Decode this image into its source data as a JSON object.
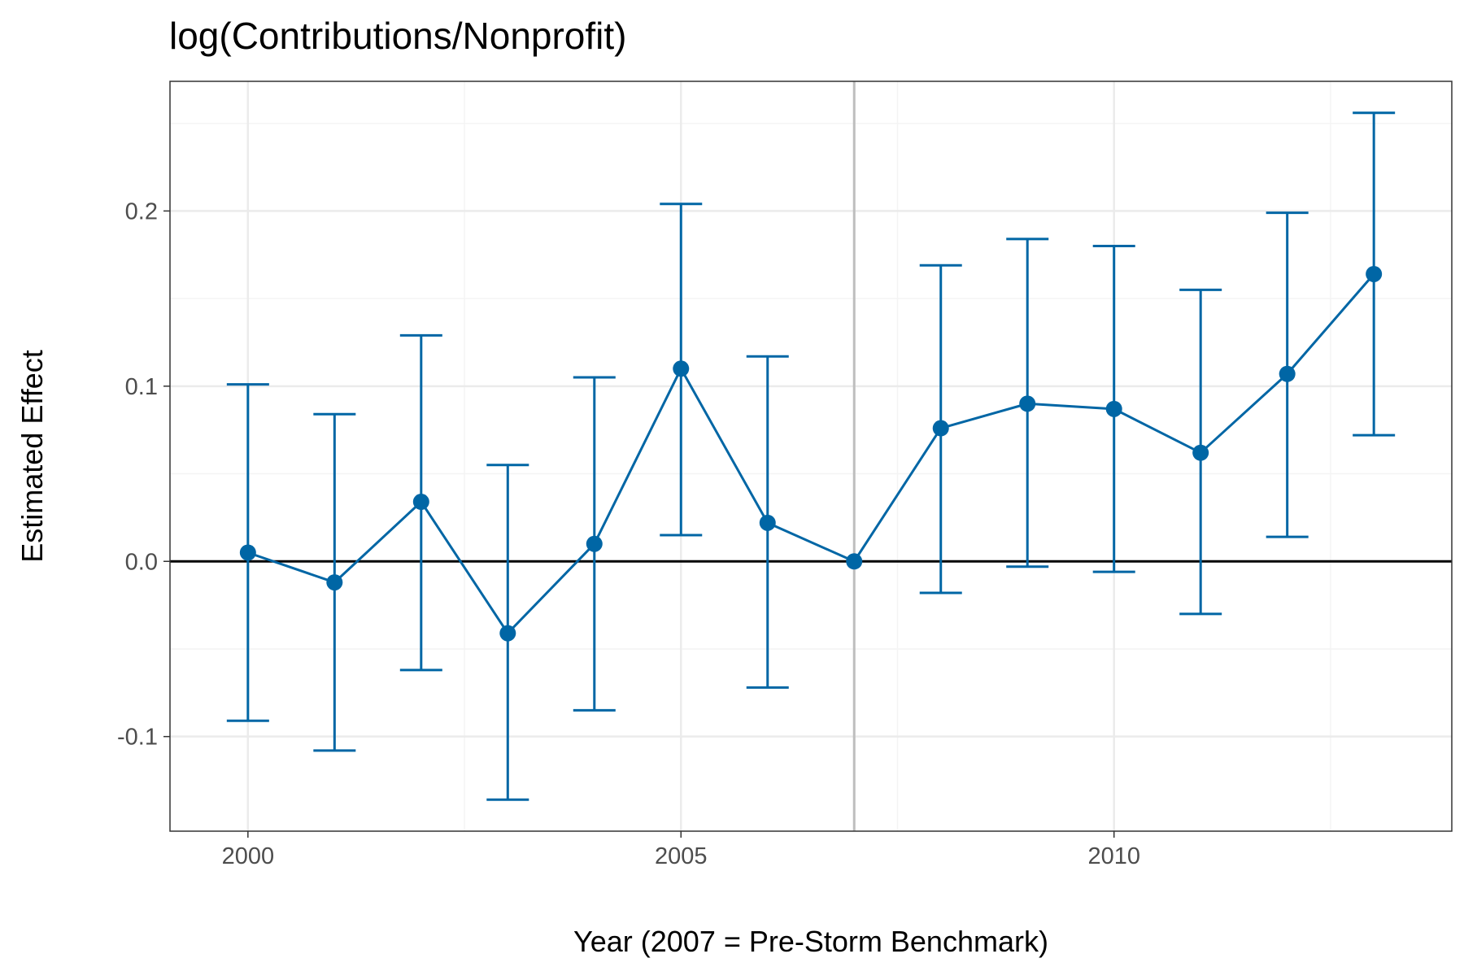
{
  "chart_data": {
    "type": "line",
    "title": "log(Contributions/Nonprofit)",
    "xlabel": "Year (2007 = Pre-Storm Benchmark)",
    "ylabel": "Estimated Effect",
    "xlim": [
      1999.1,
      2013.9
    ],
    "ylim": [
      -0.154,
      0.274
    ],
    "x_ticks": [
      2000,
      2005,
      2010
    ],
    "x_tick_labels": [
      "2000",
      "2005",
      "2010"
    ],
    "y_ticks": [
      -0.1,
      0.0,
      0.1,
      0.2
    ],
    "y_tick_labels": [
      "-0.1",
      "0.0",
      "0.1",
      "0.2"
    ],
    "x_minor_gridlines": [
      2002.5,
      2007.5,
      2012.5
    ],
    "y_minor_gridlines": [
      -0.05,
      0.05,
      0.15,
      0.25
    ],
    "grid": true,
    "reference_lines": {
      "horizontal_y": 0.0,
      "vertical_x": 2007
    },
    "colors": {
      "series": "#0066a5",
      "zero_line": "#000000",
      "benchmark_line": "#bebebe",
      "grid_major": "#ebebeb",
      "grid_minor": "#f4f4f4",
      "panel_border": "#333333"
    },
    "series": [
      {
        "x": [
          2000,
          2001,
          2002,
          2003,
          2004,
          2005,
          2006,
          2007,
          2008,
          2009,
          2010,
          2011,
          2012,
          2013
        ],
        "y": [
          0.005,
          -0.012,
          0.034,
          -0.041,
          0.01,
          0.11,
          0.022,
          0.0,
          0.076,
          0.09,
          0.087,
          0.062,
          0.107,
          0.164
        ],
        "lower": [
          -0.091,
          -0.108,
          -0.062,
          -0.136,
          -0.085,
          0.015,
          -0.072,
          0.0,
          -0.018,
          -0.003,
          -0.006,
          -0.03,
          0.014,
          0.072
        ],
        "upper": [
          0.101,
          0.084,
          0.129,
          0.055,
          0.105,
          0.204,
          0.117,
          0.0,
          0.169,
          0.184,
          0.18,
          0.155,
          0.199,
          0.256
        ]
      }
    ]
  }
}
